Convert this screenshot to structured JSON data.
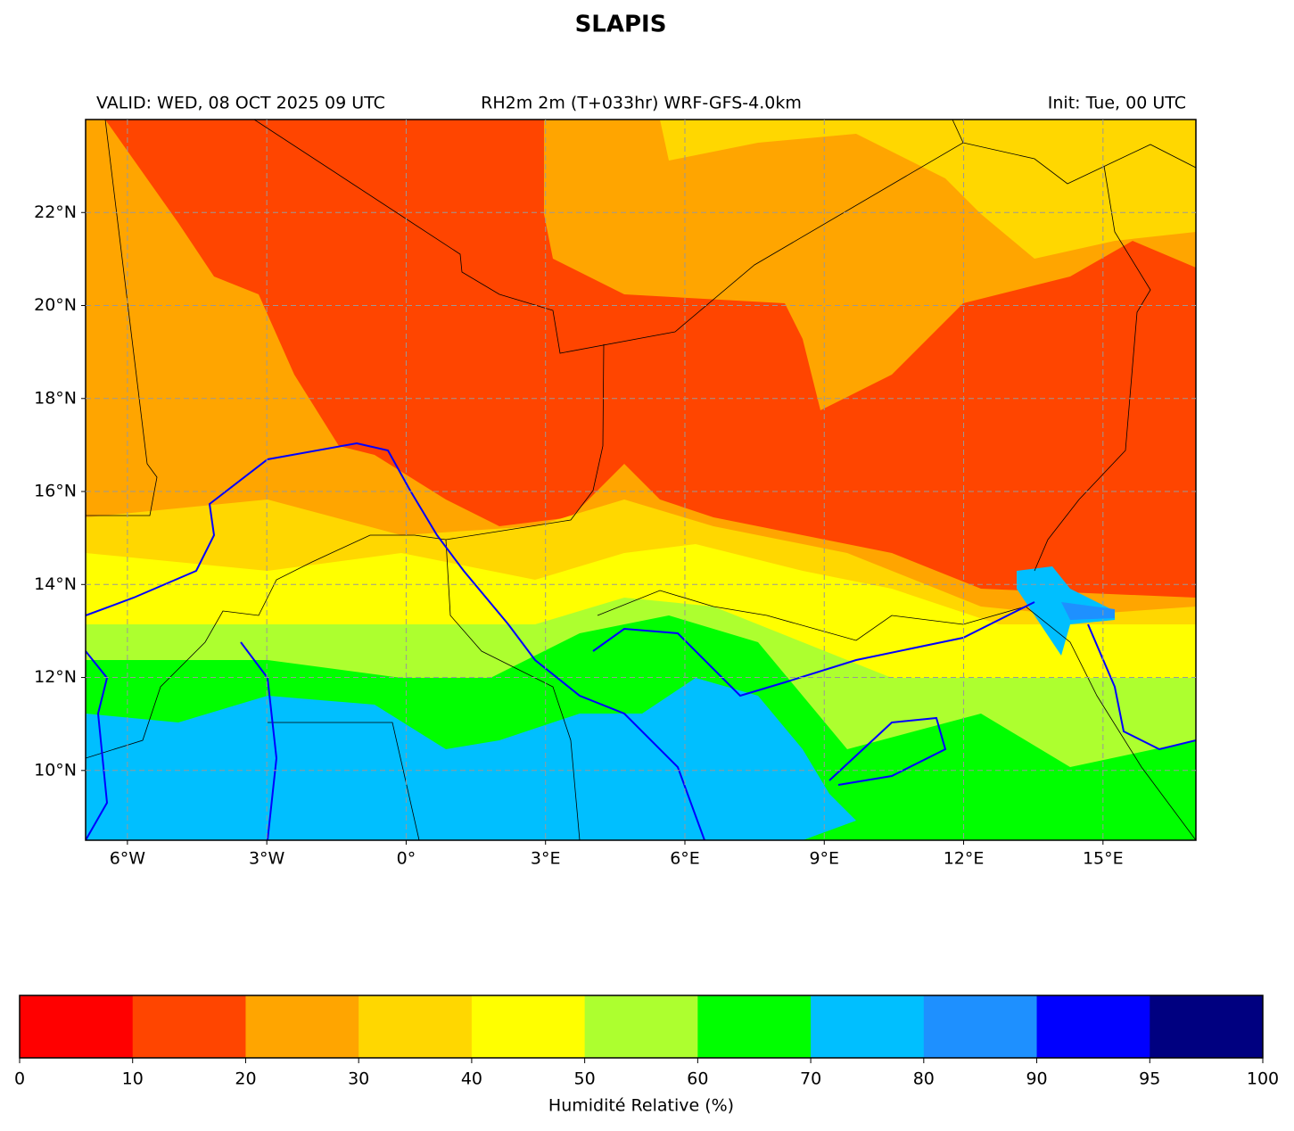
{
  "title": "SLAPIS",
  "header": {
    "valid": "VALID: WED, 08 OCT 2025 09 UTC",
    "field": "RH2m 2m (T+033hr) WRF-GFS-4.0km",
    "init": "Init: Tue, 00 UTC"
  },
  "map": {
    "xlim": [
      -6.9,
      17
    ],
    "ylim": [
      8.5,
      24
    ],
    "xticks": [
      {
        "value": -6,
        "label": "6°W"
      },
      {
        "value": -3,
        "label": "3°W"
      },
      {
        "value": 0,
        "label": "0°"
      },
      {
        "value": 3,
        "label": "3°E"
      },
      {
        "value": 6,
        "label": "6°E"
      },
      {
        "value": 9,
        "label": "9°E"
      },
      {
        "value": 12,
        "label": "12°E"
      },
      {
        "value": 15,
        "label": "15°E"
      }
    ],
    "yticks": [
      {
        "value": 10,
        "label": "10°N"
      },
      {
        "value": 12,
        "label": "12°N"
      },
      {
        "value": 14,
        "label": "14°N"
      },
      {
        "value": 16,
        "label": "16°N"
      },
      {
        "value": 18,
        "label": "18°N"
      },
      {
        "value": 20,
        "label": "20°N"
      },
      {
        "value": 22,
        "label": "22°N"
      }
    ]
  },
  "colorbar": {
    "label": "Humidité Relative (%)",
    "bounds": [
      0,
      10,
      20,
      30,
      40,
      50,
      60,
      70,
      80,
      90,
      95,
      100
    ],
    "colors": [
      "#ff0000",
      "#ff4500",
      "#ffa500",
      "#ffd700",
      "#ffff00",
      "#adff2f",
      "#00ff00",
      "#00bfff",
      "#1e90ff",
      "#0000ff",
      "#000080"
    ]
  }
}
